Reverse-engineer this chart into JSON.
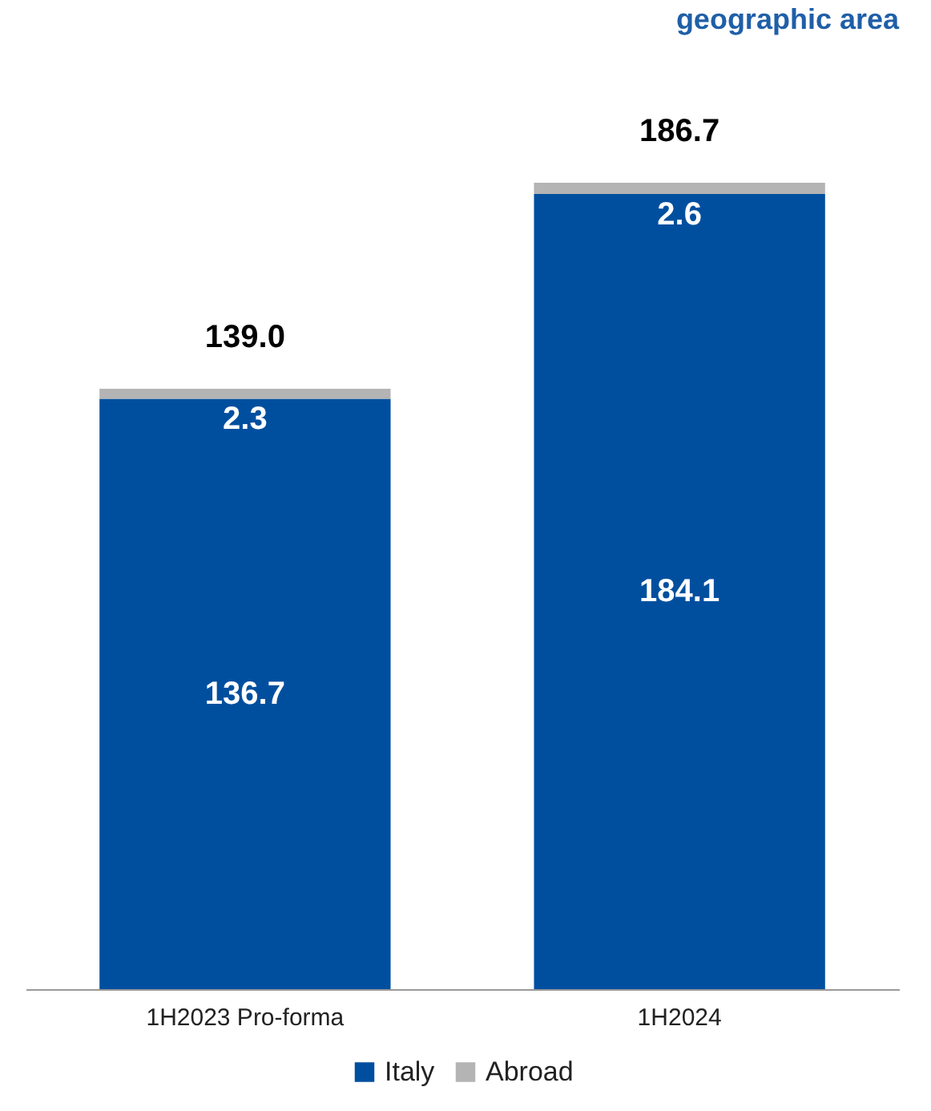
{
  "chart_data": {
    "type": "bar",
    "title": "geographic area",
    "categories": [
      "1H2023 Pro-forma",
      "1H2024"
    ],
    "stacked": true,
    "series": [
      {
        "name": "Italy",
        "color": "#004f9f",
        "values": [
          136.7,
          184.1
        ]
      },
      {
        "name": "Abroad",
        "color": "#b4b4b4",
        "values": [
          2.3,
          2.6
        ]
      }
    ],
    "data_labels": true,
    "totals": [
      "139.0",
      "186.7"
    ],
    "legend": "bottom"
  }
}
